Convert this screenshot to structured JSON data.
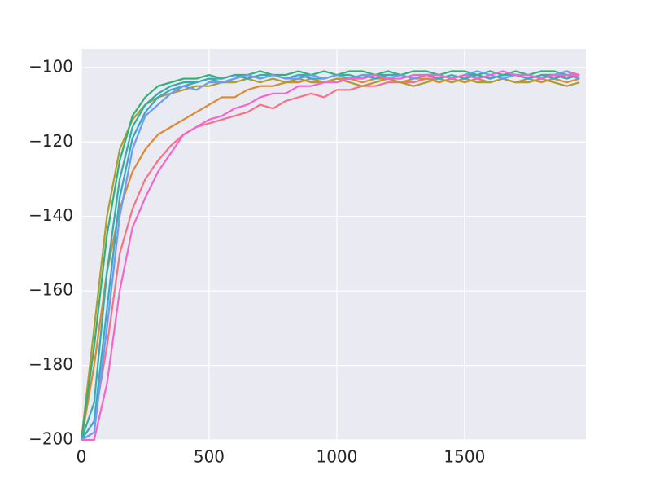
{
  "chart_data": {
    "type": "line",
    "x": [
      0,
      50,
      100,
      150,
      200,
      250,
      300,
      350,
      400,
      450,
      500,
      550,
      600,
      650,
      700,
      750,
      800,
      850,
      900,
      950,
      1000,
      1050,
      1100,
      1150,
      1200,
      1250,
      1300,
      1350,
      1400,
      1450,
      1500,
      1550,
      1600,
      1650,
      1700,
      1750,
      1800,
      1850,
      1900,
      1950
    ],
    "xlim": [
      0,
      1975
    ],
    "ylim": [
      -200,
      -95
    ],
    "xticks": [
      0,
      500,
      1000,
      1500
    ],
    "yticks": [
      {
        "value": -200,
        "label": "−200"
      },
      {
        "value": -180,
        "label": "−180"
      },
      {
        "value": -160,
        "label": "−160"
      },
      {
        "value": -140,
        "label": "−140"
      },
      {
        "value": -120,
        "label": "−120"
      },
      {
        "value": -100,
        "label": "−100"
      }
    ],
    "grid": true,
    "series": [
      {
        "color": "#f77189",
        "values": [
          -200,
          -195,
          -175,
          -150,
          -138,
          -130,
          -125,
          -121,
          -118,
          -116,
          -115,
          -114,
          -113,
          -112,
          -110,
          -111,
          -109,
          -108,
          -107,
          -108,
          -106,
          -106,
          -105,
          -105,
          -104,
          -104,
          -104,
          -103,
          -103,
          -104,
          -103,
          -102,
          -103,
          -102,
          -102,
          -103,
          -102,
          -102,
          -101,
          -102
        ]
      },
      {
        "color": "#dc8932",
        "values": [
          -200,
          -180,
          -155,
          -138,
          -128,
          -122,
          -118,
          -116,
          -114,
          -112,
          -110,
          -108,
          -108,
          -106,
          -105,
          -105,
          -104,
          -104,
          -103,
          -104,
          -103,
          -103,
          -104,
          -103,
          -103,
          -104,
          -103,
          -103,
          -104,
          -103,
          -104,
          -103,
          -104,
          -103,
          -104,
          -103,
          -104,
          -103,
          -104,
          -103
        ]
      },
      {
        "color": "#ae9d31",
        "values": [
          -200,
          -170,
          -140,
          -122,
          -114,
          -110,
          -108,
          -107,
          -106,
          -105,
          -105,
          -104,
          -104,
          -103,
          -104,
          -103,
          -104,
          -103,
          -104,
          -104,
          -103,
          -104,
          -105,
          -104,
          -103,
          -104,
          -105,
          -104,
          -103,
          -104,
          -103,
          -104,
          -104,
          -103,
          -104,
          -104,
          -103,
          -104,
          -105,
          -104
        ]
      },
      {
        "color": "#33b07a",
        "values": [
          -200,
          -175,
          -145,
          -125,
          -113,
          -108,
          -105,
          -104,
          -103,
          -103,
          -102,
          -103,
          -102,
          -102,
          -101,
          -102,
          -102,
          -101,
          -102,
          -101,
          -102,
          -101,
          -101,
          -102,
          -101,
          -102,
          -101,
          -101,
          -102,
          -101,
          -101,
          -102,
          -101,
          -102,
          -101,
          -102,
          -101,
          -101,
          -102,
          -102
        ]
      },
      {
        "color": "#36ada4",
        "values": [
          -200,
          -190,
          -155,
          -130,
          -116,
          -110,
          -107,
          -105,
          -104,
          -104,
          -103,
          -103,
          -102,
          -103,
          -102,
          -102,
          -103,
          -102,
          -102,
          -103,
          -102,
          -102,
          -103,
          -102,
          -102,
          -102,
          -103,
          -102,
          -102,
          -103,
          -102,
          -102,
          -103,
          -102,
          -102,
          -103,
          -102,
          -102,
          -103,
          -102
        ]
      },
      {
        "color": "#38a9c5",
        "values": [
          -200,
          -195,
          -165,
          -135,
          -119,
          -112,
          -108,
          -106,
          -105,
          -104,
          -103,
          -104,
          -103,
          -102,
          -103,
          -102,
          -103,
          -102,
          -103,
          -103,
          -102,
          -103,
          -102,
          -103,
          -102,
          -102,
          -103,
          -102,
          -103,
          -102,
          -103,
          -102,
          -103,
          -102,
          -102,
          -103,
          -102,
          -103,
          -102,
          -103
        ]
      },
      {
        "color": "#6e9bf4",
        "values": [
          -200,
          -198,
          -170,
          -140,
          -122,
          -113,
          -110,
          -107,
          -105,
          -106,
          -104,
          -104,
          -103,
          -102,
          -103,
          -102,
          -103,
          -103,
          -102,
          -103,
          -102,
          -103,
          -102,
          -102,
          -103,
          -102,
          -103,
          -102,
          -102,
          -103,
          -102,
          -101,
          -102,
          -103,
          -102,
          -102,
          -103,
          -102,
          -101,
          -103
        ]
      },
      {
        "color": "#f565cc",
        "values": [
          -200,
          -200,
          -185,
          -160,
          -143,
          -135,
          -128,
          -123,
          -118,
          -116,
          -114,
          -113,
          -111,
          -110,
          -108,
          -107,
          -107,
          -105,
          -105,
          -104,
          -104,
          -103,
          -103,
          -102,
          -103,
          -103,
          -102,
          -102,
          -102,
          -103,
          -102,
          -103,
          -102,
          -101,
          -102,
          -102,
          -103,
          -102,
          -102,
          -102
        ]
      }
    ]
  }
}
